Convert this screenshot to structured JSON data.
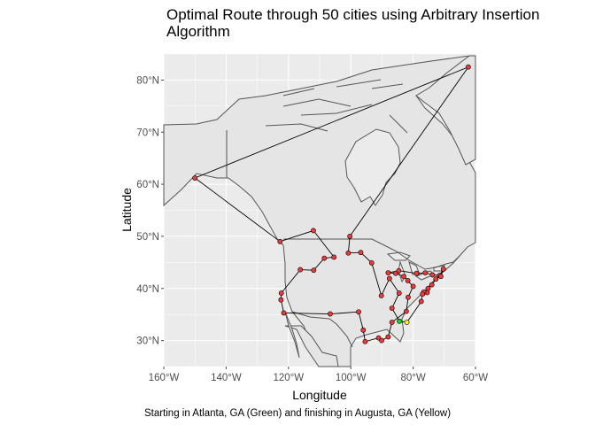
{
  "title": "Optimal Route through 50 cities using Arbitrary Insertion Algorithm",
  "caption": "Starting in Atlanta, GA (Green) and finishing in Augusta, GA (Yellow)",
  "xlabel": "Longitude",
  "ylabel": "Latitude",
  "colors": {
    "panel": "#ebebeb",
    "land": "#e5e5e5",
    "coast": "#555555",
    "grid": "#ffffff",
    "route": "#000000",
    "city": "#f03a3a",
    "start": "#00e000",
    "end": "#ffff00"
  },
  "chart_data": {
    "type": "map-route",
    "xlim": [
      -160,
      -60
    ],
    "ylim": [
      25,
      85
    ],
    "x_ticks": [
      -160,
      -140,
      -120,
      -100,
      -80,
      -60
    ],
    "x_tick_labels": [
      "160°W",
      "140°W",
      "120°W",
      "100°W",
      "80°W",
      "60°W"
    ],
    "y_ticks": [
      30,
      40,
      50,
      60,
      70,
      80
    ],
    "y_tick_labels": [
      "30°N",
      "40°N",
      "50°N",
      "60°N",
      "70°N",
      "80°N"
    ],
    "route": [
      [
        -84.4,
        33.7
      ],
      [
        -86.8,
        36.2
      ],
      [
        -84.5,
        39.1
      ],
      [
        -87.6,
        41.9
      ],
      [
        -90.2,
        38.6
      ],
      [
        -93.3,
        44.9
      ],
      [
        -96.8,
        46.9
      ],
      [
        -100.8,
        46.8
      ],
      [
        -100.3,
        50.0
      ],
      [
        -62.3,
        82.5
      ],
      [
        -150.0,
        61.2
      ],
      [
        -122.7,
        49.0
      ],
      [
        -112.0,
        51.1
      ],
      [
        -105.4,
        46.0
      ],
      [
        -108.5,
        45.8
      ],
      [
        -111.9,
        43.5
      ],
      [
        -116.2,
        43.6
      ],
      [
        -122.3,
        39.1
      ],
      [
        -122.4,
        37.8
      ],
      [
        -121.5,
        35.3
      ],
      [
        -106.6,
        35.1
      ],
      [
        -97.5,
        35.5
      ],
      [
        -96.0,
        32.0
      ],
      [
        -95.4,
        29.8
      ],
      [
        -91.1,
        30.5
      ],
      [
        -90.1,
        30.0
      ],
      [
        -88.0,
        30.7
      ],
      [
        -86.8,
        33.5
      ],
      [
        -82.2,
        35.6
      ],
      [
        -81.6,
        38.3
      ],
      [
        -80.0,
        40.4
      ],
      [
        -81.7,
        41.5
      ],
      [
        -83.0,
        42.3
      ],
      [
        -85.6,
        42.9
      ],
      [
        -88.0,
        43.0
      ],
      [
        -84.6,
        43.4
      ],
      [
        -78.9,
        42.9
      ],
      [
        -76.1,
        43.0
      ],
      [
        -73.8,
        42.6
      ],
      [
        -71.5,
        42.5
      ],
      [
        -70.3,
        43.7
      ],
      [
        -71.1,
        42.3
      ],
      [
        -72.7,
        41.8
      ],
      [
        -74.0,
        40.7
      ],
      [
        -75.2,
        40.0
      ],
      [
        -75.5,
        39.2
      ],
      [
        -76.6,
        39.3
      ],
      [
        -77.0,
        38.9
      ],
      [
        -77.4,
        37.5
      ],
      [
        -82.0,
        33.5
      ]
    ],
    "start_city": "Atlanta, GA",
    "end_city": "Augusta, GA"
  }
}
